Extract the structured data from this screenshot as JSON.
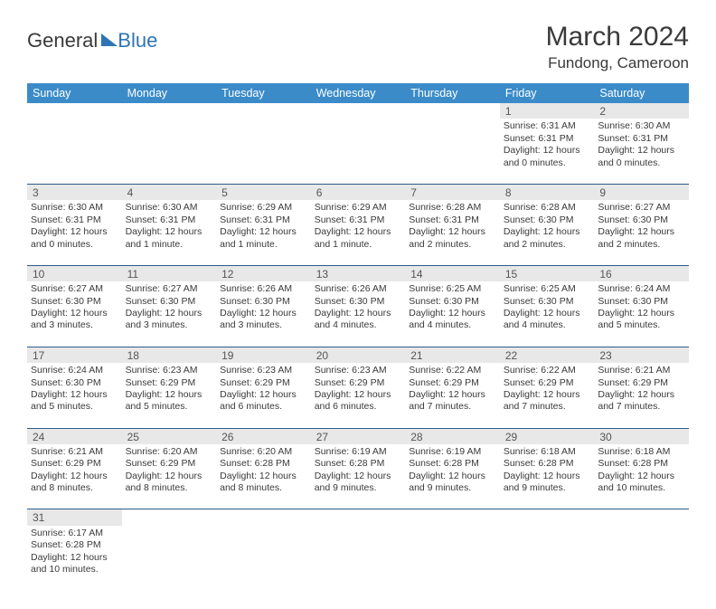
{
  "logo": {
    "text_general": "General",
    "text_blue": "Blue"
  },
  "title": {
    "month": "March 2024",
    "location": "Fundong, Cameroon"
  },
  "colors": {
    "header_bg": "#3b8bc9",
    "header_fg": "#ffffff",
    "daynum_bg": "#e8e8e8",
    "border": "#2e5c8a",
    "text": "#3a3a3a",
    "logo_blue": "#2e75b6"
  },
  "weekdays": [
    "Sunday",
    "Monday",
    "Tuesday",
    "Wednesday",
    "Thursday",
    "Friday",
    "Saturday"
  ],
  "weeks": [
    [
      null,
      null,
      null,
      null,
      null,
      {
        "n": "1",
        "sunrise": "6:31 AM",
        "sunset": "6:31 PM",
        "day_h": "12",
        "day_m": "0"
      },
      {
        "n": "2",
        "sunrise": "6:30 AM",
        "sunset": "6:31 PM",
        "day_h": "12",
        "day_m": "0"
      }
    ],
    [
      {
        "n": "3",
        "sunrise": "6:30 AM",
        "sunset": "6:31 PM",
        "day_h": "12",
        "day_m": "0"
      },
      {
        "n": "4",
        "sunrise": "6:30 AM",
        "sunset": "6:31 PM",
        "day_h": "12",
        "day_m": "1"
      },
      {
        "n": "5",
        "sunrise": "6:29 AM",
        "sunset": "6:31 PM",
        "day_h": "12",
        "day_m": "1"
      },
      {
        "n": "6",
        "sunrise": "6:29 AM",
        "sunset": "6:31 PM",
        "day_h": "12",
        "day_m": "1"
      },
      {
        "n": "7",
        "sunrise": "6:28 AM",
        "sunset": "6:31 PM",
        "day_h": "12",
        "day_m": "2"
      },
      {
        "n": "8",
        "sunrise": "6:28 AM",
        "sunset": "6:30 PM",
        "day_h": "12",
        "day_m": "2"
      },
      {
        "n": "9",
        "sunrise": "6:27 AM",
        "sunset": "6:30 PM",
        "day_h": "12",
        "day_m": "2"
      }
    ],
    [
      {
        "n": "10",
        "sunrise": "6:27 AM",
        "sunset": "6:30 PM",
        "day_h": "12",
        "day_m": "3"
      },
      {
        "n": "11",
        "sunrise": "6:27 AM",
        "sunset": "6:30 PM",
        "day_h": "12",
        "day_m": "3"
      },
      {
        "n": "12",
        "sunrise": "6:26 AM",
        "sunset": "6:30 PM",
        "day_h": "12",
        "day_m": "3"
      },
      {
        "n": "13",
        "sunrise": "6:26 AM",
        "sunset": "6:30 PM",
        "day_h": "12",
        "day_m": "4"
      },
      {
        "n": "14",
        "sunrise": "6:25 AM",
        "sunset": "6:30 PM",
        "day_h": "12",
        "day_m": "4"
      },
      {
        "n": "15",
        "sunrise": "6:25 AM",
        "sunset": "6:30 PM",
        "day_h": "12",
        "day_m": "4"
      },
      {
        "n": "16",
        "sunrise": "6:24 AM",
        "sunset": "6:30 PM",
        "day_h": "12",
        "day_m": "5"
      }
    ],
    [
      {
        "n": "17",
        "sunrise": "6:24 AM",
        "sunset": "6:30 PM",
        "day_h": "12",
        "day_m": "5"
      },
      {
        "n": "18",
        "sunrise": "6:23 AM",
        "sunset": "6:29 PM",
        "day_h": "12",
        "day_m": "5"
      },
      {
        "n": "19",
        "sunrise": "6:23 AM",
        "sunset": "6:29 PM",
        "day_h": "12",
        "day_m": "6"
      },
      {
        "n": "20",
        "sunrise": "6:23 AM",
        "sunset": "6:29 PM",
        "day_h": "12",
        "day_m": "6"
      },
      {
        "n": "21",
        "sunrise": "6:22 AM",
        "sunset": "6:29 PM",
        "day_h": "12",
        "day_m": "7"
      },
      {
        "n": "22",
        "sunrise": "6:22 AM",
        "sunset": "6:29 PM",
        "day_h": "12",
        "day_m": "7"
      },
      {
        "n": "23",
        "sunrise": "6:21 AM",
        "sunset": "6:29 PM",
        "day_h": "12",
        "day_m": "7"
      }
    ],
    [
      {
        "n": "24",
        "sunrise": "6:21 AM",
        "sunset": "6:29 PM",
        "day_h": "12",
        "day_m": "8"
      },
      {
        "n": "25",
        "sunrise": "6:20 AM",
        "sunset": "6:29 PM",
        "day_h": "12",
        "day_m": "8"
      },
      {
        "n": "26",
        "sunrise": "6:20 AM",
        "sunset": "6:28 PM",
        "day_h": "12",
        "day_m": "8"
      },
      {
        "n": "27",
        "sunrise": "6:19 AM",
        "sunset": "6:28 PM",
        "day_h": "12",
        "day_m": "9"
      },
      {
        "n": "28",
        "sunrise": "6:19 AM",
        "sunset": "6:28 PM",
        "day_h": "12",
        "day_m": "9"
      },
      {
        "n": "29",
        "sunrise": "6:18 AM",
        "sunset": "6:28 PM",
        "day_h": "12",
        "day_m": "9"
      },
      {
        "n": "30",
        "sunrise": "6:18 AM",
        "sunset": "6:28 PM",
        "day_h": "12",
        "day_m": "10"
      }
    ],
    [
      {
        "n": "31",
        "sunrise": "6:17 AM",
        "sunset": "6:28 PM",
        "day_h": "12",
        "day_m": "10"
      },
      null,
      null,
      null,
      null,
      null,
      null
    ]
  ],
  "labels": {
    "sunrise": "Sunrise:",
    "sunset": "Sunset:",
    "daylight": "Daylight:",
    "hours": "hours",
    "and": "and",
    "minute": "minute",
    "minutes": "minutes"
  }
}
